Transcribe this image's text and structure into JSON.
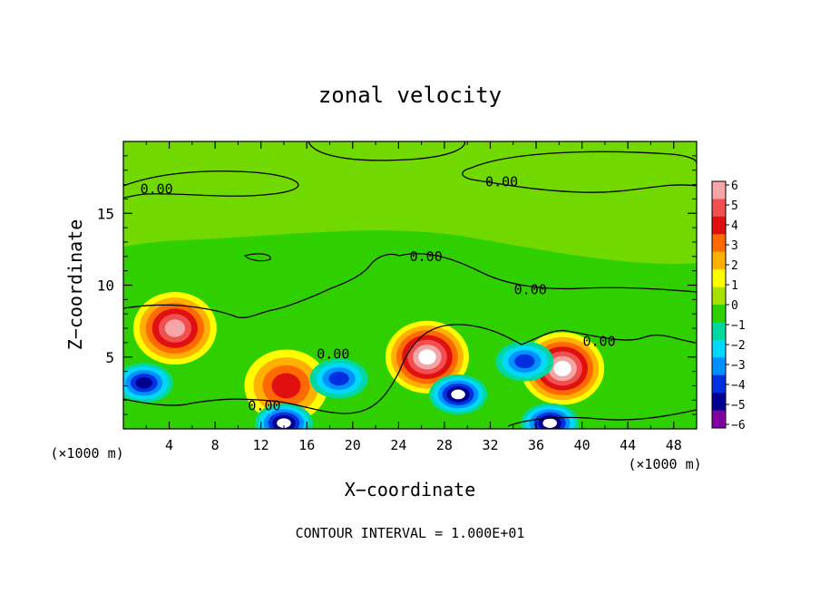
{
  "chart_data": {
    "type": "heatmap",
    "title": "zonal velocity",
    "xlabel": "X−coordinate",
    "ylabel": "Z−coordinate",
    "x_unit_left": "(×1000 m)",
    "x_unit_right": "(×1000 m)",
    "xlim": [
      0,
      50
    ],
    "ylim": [
      0,
      20
    ],
    "x_ticks": [
      4,
      8,
      12,
      16,
      20,
      24,
      28,
      32,
      36,
      40,
      44,
      48
    ],
    "y_ticks": [
      5,
      10,
      15
    ],
    "footer": "CONTOUR INTERVAL = 1.000E+01",
    "colorbar": {
      "ticks": [
        6,
        5,
        4,
        3,
        2,
        1,
        0,
        -1,
        -2,
        -3,
        -4,
        -5,
        -6
      ],
      "tick_labels": [
        "6",
        "5",
        "4",
        "3",
        "2",
        "1",
        "0",
        "−1",
        "−2",
        "−3",
        "−4",
        "−5",
        "−6"
      ],
      "colors": [
        "#f4a6a6",
        "#f05050",
        "#e01010",
        "#ff6a00",
        "#ffb000",
        "#ffff00",
        "#a8e000",
        "#30d000",
        "#00d8a0",
        "#00d8ff",
        "#0090ff",
        "#0030e0",
        "#000090",
        "#8000a0"
      ]
    },
    "contour_labels": [
      {
        "text": "0.00",
        "x": 2.9,
        "z": 16.7
      },
      {
        "text": "0.00",
        "x": 33.0,
        "z": 17.2
      },
      {
        "text": "0.00",
        "x": 26.4,
        "z": 12.0
      },
      {
        "text": "0.00",
        "x": 35.5,
        "z": 9.7
      },
      {
        "text": "0.00",
        "x": 41.5,
        "z": 6.1
      },
      {
        "text": "0.00",
        "x": 18.3,
        "z": 5.2
      },
      {
        "text": "0.00",
        "x": 12.3,
        "z": 1.6
      }
    ],
    "features": [
      {
        "sign": "positive",
        "x": 4.5,
        "z": 7.0,
        "peak": 5.5
      },
      {
        "sign": "positive",
        "x": 14.2,
        "z": 3.0,
        "peak": 4.0
      },
      {
        "sign": "positive",
        "x": 26.5,
        "z": 5.0,
        "peak": 6.5
      },
      {
        "sign": "positive",
        "x": 38.3,
        "z": 4.2,
        "peak": 6.5
      },
      {
        "sign": "negative",
        "x": 1.8,
        "z": 3.2,
        "peak": -4.5
      },
      {
        "sign": "negative",
        "x": 18.8,
        "z": 3.5,
        "peak": -4.0
      },
      {
        "sign": "negative",
        "x": 29.2,
        "z": 2.4,
        "peak": -6.5
      },
      {
        "sign": "negative",
        "x": 35.0,
        "z": 4.7,
        "peak": -4.0
      },
      {
        "sign": "negative",
        "x": 14.0,
        "z": 0.4,
        "peak": -6.5
      },
      {
        "sign": "negative",
        "x": 37.2,
        "z": 0.4,
        "peak": -6.5
      }
    ]
  }
}
